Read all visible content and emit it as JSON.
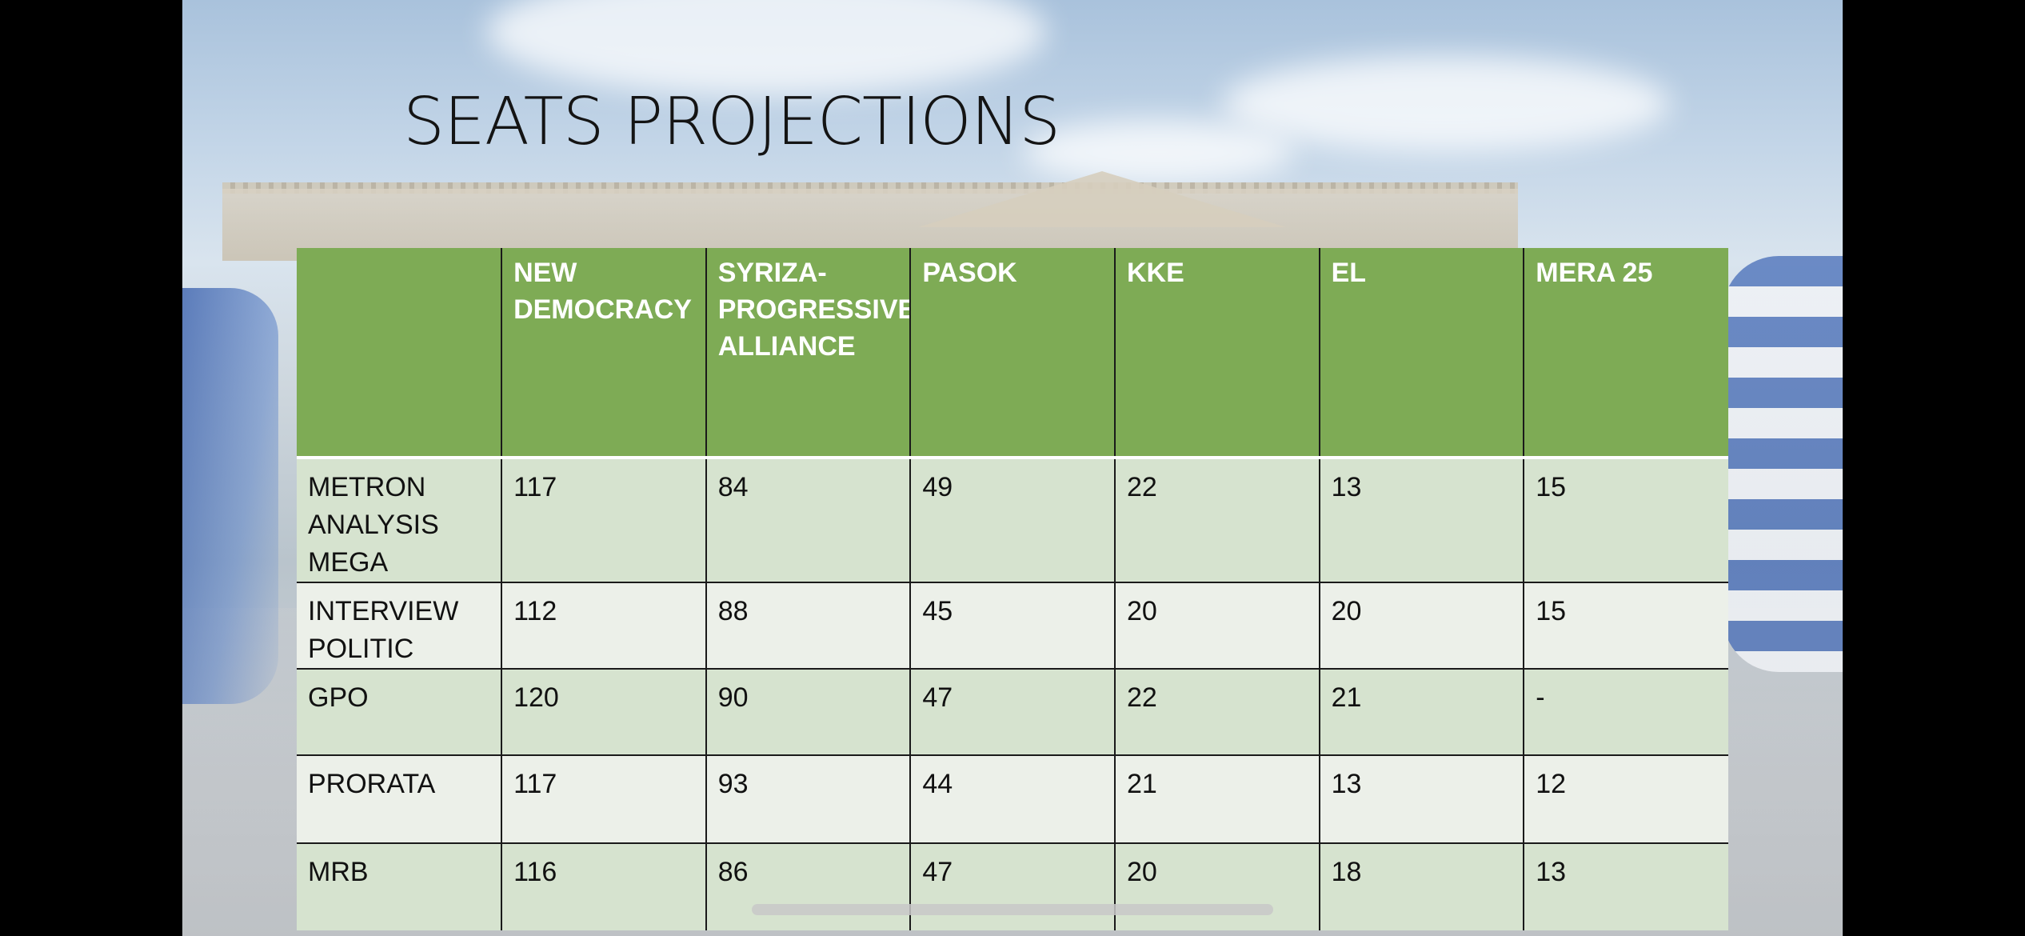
{
  "slide": {
    "title": "SEATS PROJECTIONS"
  },
  "table": {
    "corner_header": "",
    "columns": [
      "NEW DEMOCRACY",
      "SYRIZA-PROGRESSIVE ALLIANCE",
      "PASOK",
      "KKE",
      "EL",
      "MERA 25"
    ],
    "rows": [
      {
        "pollster": "METRON ANALYSIS MEGA",
        "values": [
          "117",
          "84",
          "49",
          "22",
          "13",
          "15"
        ]
      },
      {
        "pollster": "INTERVIEW POLITIC",
        "values": [
          "112",
          "88",
          "45",
          "20",
          "20",
          "15"
        ]
      },
      {
        "pollster": "GPO",
        "values": [
          "120",
          "90",
          "47",
          "22",
          "21",
          "-"
        ]
      },
      {
        "pollster": "PRORATA",
        "values": [
          "117",
          "93",
          "44",
          "21",
          "13",
          "12"
        ]
      },
      {
        "pollster": "MRB",
        "values": [
          "116",
          "86",
          "47",
          "20",
          "18",
          "13"
        ]
      }
    ]
  },
  "colors": {
    "header_bg": "#7eab55",
    "row_odd_bg": "#d6e3cf",
    "row_even_bg": "#ecf0e9",
    "header_text": "#ffffff"
  }
}
